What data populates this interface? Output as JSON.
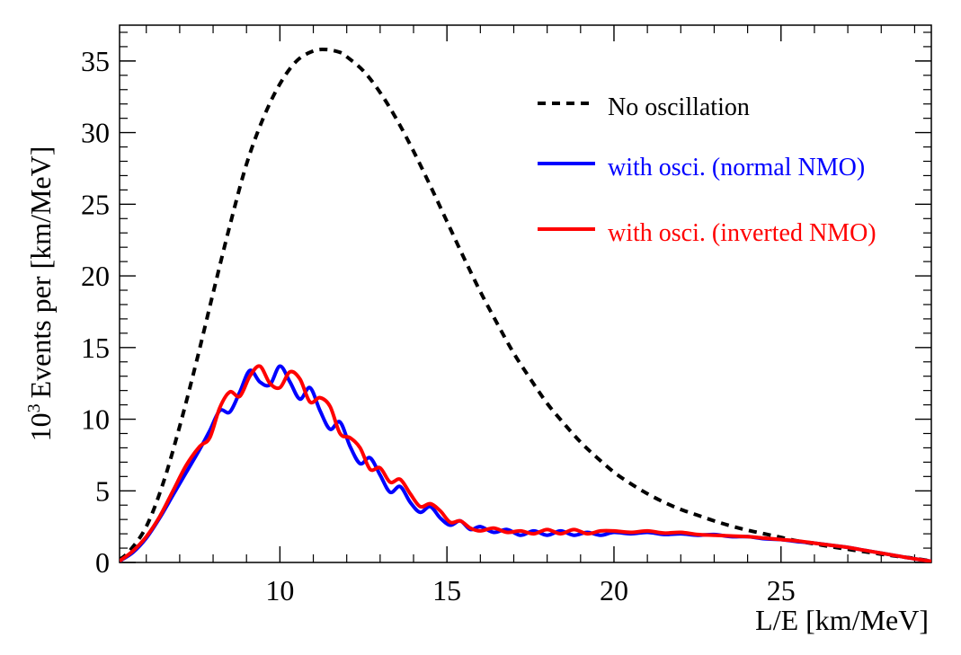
{
  "chart_data": {
    "type": "line",
    "title": "",
    "xlabel": "L/E [km/MeV]",
    "ylabel": "Events per [km/MeV]",
    "ylabel_prefix": "10",
    "ylabel_exponent": "3",
    "xlim": [
      5.2,
      29.5
    ],
    "ylim": [
      0,
      37.5
    ],
    "x_ticks": [
      10,
      15,
      20,
      25
    ],
    "y_ticks": [
      0,
      5,
      10,
      15,
      20,
      25,
      30,
      35
    ],
    "grid": false,
    "legend_position": "top-right",
    "series": [
      {
        "name": "No oscillation",
        "color": "#000000",
        "dash": "dashed",
        "x": [
          5.2,
          5.5,
          6,
          6.5,
          7,
          7.5,
          8,
          8.5,
          9,
          9.5,
          10,
          10.5,
          11,
          11.4,
          11.8,
          12,
          12.5,
          13,
          13.5,
          14,
          14.5,
          15,
          15.5,
          16,
          16.5,
          17,
          17.5,
          18,
          18.5,
          19,
          19.5,
          20,
          20.5,
          21,
          21.5,
          22,
          22.5,
          23,
          23.5,
          24,
          24.5,
          25,
          25.5,
          26,
          26.5,
          27,
          27.5,
          28,
          28.5,
          29,
          29.5
        ],
        "y": [
          0.2,
          0.8,
          2.5,
          5.5,
          9.5,
          14.0,
          18.8,
          23.5,
          27.8,
          31.0,
          33.4,
          35.0,
          35.7,
          35.8,
          35.6,
          35.3,
          34.3,
          32.8,
          30.9,
          28.7,
          26.3,
          23.8,
          21.3,
          18.9,
          16.7,
          14.6,
          12.8,
          11.1,
          9.7,
          8.4,
          7.3,
          6.3,
          5.5,
          4.8,
          4.2,
          3.7,
          3.3,
          2.9,
          2.55,
          2.25,
          2.0,
          1.75,
          1.5,
          1.3,
          1.1,
          0.92,
          0.75,
          0.58,
          0.42,
          0.28,
          0.1
        ]
      },
      {
        "name": "with osci. (normal NMO)",
        "color": "#0000ff",
        "dash": "solid",
        "x": [
          5.2,
          5.6,
          6,
          6.4,
          6.8,
          7.2,
          7.6,
          7.9,
          8.2,
          8.5,
          8.8,
          9.1,
          9.4,
          9.7,
          10.0,
          10.3,
          10.6,
          10.9,
          11.2,
          11.5,
          11.8,
          12.1,
          12.4,
          12.7,
          13.0,
          13.3,
          13.6,
          13.9,
          14.2,
          14.5,
          14.8,
          15.1,
          15.4,
          15.7,
          16.0,
          16.4,
          16.8,
          17.2,
          17.6,
          18.0,
          18.4,
          18.8,
          19.2,
          19.6,
          20.0,
          20.5,
          21.0,
          21.5,
          22.0,
          22.5,
          23.0,
          23.5,
          24.0,
          24.5,
          25.0,
          25.5,
          26.0,
          26.5,
          27.0,
          27.5,
          28.0,
          28.5,
          29.0,
          29.5
        ],
        "y": [
          0.1,
          0.7,
          1.7,
          3.1,
          4.7,
          6.3,
          7.9,
          9.2,
          10.6,
          10.5,
          11.9,
          13.4,
          12.6,
          12.4,
          13.7,
          12.6,
          11.4,
          12.2,
          10.6,
          9.3,
          9.8,
          8.1,
          6.9,
          7.3,
          6.1,
          4.9,
          5.3,
          4.2,
          3.5,
          3.9,
          3.1,
          2.6,
          2.9,
          2.3,
          2.5,
          2.1,
          2.3,
          1.9,
          2.2,
          1.9,
          2.2,
          1.9,
          2.1,
          1.9,
          2.1,
          2.0,
          2.1,
          1.95,
          2.0,
          1.9,
          1.95,
          1.8,
          1.8,
          1.65,
          1.6,
          1.45,
          1.35,
          1.2,
          1.05,
          0.85,
          0.65,
          0.45,
          0.25,
          0.08
        ]
      },
      {
        "name": "with osci. (inverted NMO)",
        "color": "#ff0000",
        "dash": "solid",
        "x": [
          5.2,
          5.6,
          6,
          6.4,
          6.8,
          7.2,
          7.6,
          7.9,
          8.2,
          8.5,
          8.8,
          9.1,
          9.4,
          9.7,
          10.0,
          10.3,
          10.6,
          10.9,
          11.2,
          11.5,
          11.8,
          12.1,
          12.4,
          12.7,
          13.0,
          13.3,
          13.6,
          13.9,
          14.2,
          14.5,
          14.8,
          15.1,
          15.4,
          15.7,
          16.0,
          16.4,
          16.8,
          17.2,
          17.6,
          18.0,
          18.4,
          18.8,
          19.2,
          19.6,
          20.0,
          20.5,
          21.0,
          21.5,
          22.0,
          22.5,
          23.0,
          23.5,
          24.0,
          24.5,
          25.0,
          25.5,
          26.0,
          26.5,
          27.0,
          27.5,
          28.0,
          28.5,
          29.0,
          29.5
        ],
        "y": [
          0.1,
          0.8,
          1.8,
          3.2,
          5.0,
          6.8,
          8.1,
          8.7,
          10.8,
          11.9,
          11.6,
          13.0,
          13.7,
          12.5,
          12.2,
          13.3,
          12.8,
          11.2,
          11.5,
          10.9,
          9.0,
          8.7,
          8.0,
          6.5,
          6.6,
          5.6,
          5.8,
          4.8,
          3.9,
          4.1,
          3.6,
          2.8,
          2.9,
          2.4,
          2.2,
          2.4,
          2.1,
          2.2,
          2.0,
          2.3,
          2.0,
          2.3,
          2.0,
          2.2,
          2.2,
          2.1,
          2.2,
          2.05,
          2.1,
          1.95,
          1.9,
          1.85,
          1.8,
          1.7,
          1.6,
          1.5,
          1.35,
          1.2,
          1.05,
          0.85,
          0.65,
          0.45,
          0.25,
          0.08
        ]
      }
    ]
  }
}
